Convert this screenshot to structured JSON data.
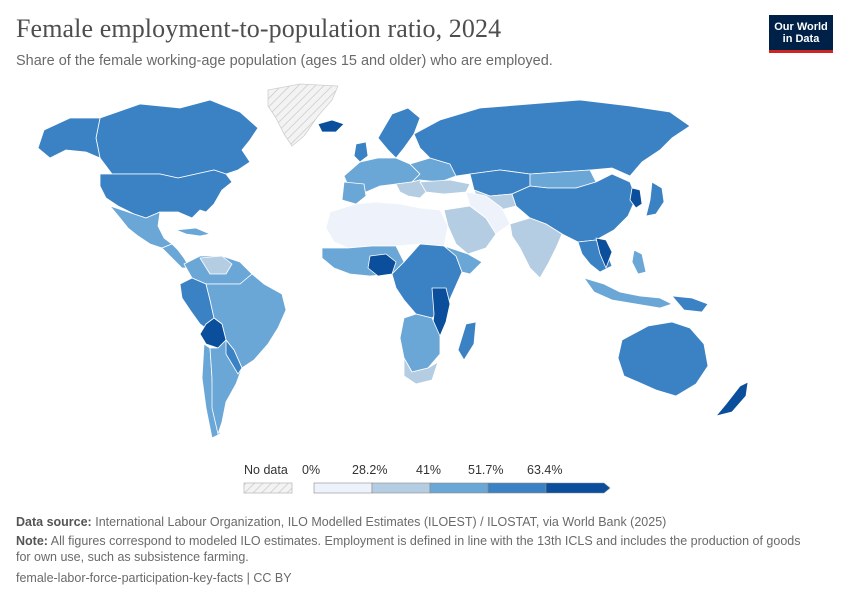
{
  "title": "Female employment-to-population ratio, 2024",
  "subtitle": "Share of the female working-age population (ages 15 and older) who are employed.",
  "logo": {
    "line1": "Our World",
    "line2": "in Data"
  },
  "legend": {
    "no_data_label": "No data",
    "ticks": [
      "0%",
      "28.2%",
      "41%",
      "51.7%",
      "63.4%"
    ],
    "colors": [
      "#eef2fb",
      "#b4cde3",
      "#6aa7d6",
      "#3b82c4",
      "#0b4f9c"
    ],
    "no_data_color": "#f3f3f3"
  },
  "footer": {
    "source_label": "Data source:",
    "source_text": "International Labour Organization, ILO Modelled Estimates (ILOEST) / ILOSTAT, via World Bank (2025)",
    "note_label": "Note:",
    "note_text": "All figures correspond to modeled ILO estimates. Employment is defined in line with the 13th ICLS and includes the production of goods for own use, such as subsistence farming.",
    "slug": "female-labor-force-participation-key-facts | CC BY"
  }
}
